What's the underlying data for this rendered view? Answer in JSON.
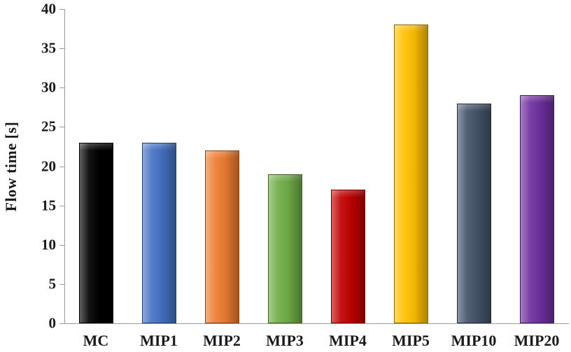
{
  "chart_data": {
    "type": "bar",
    "title": "",
    "xlabel": "",
    "ylabel": "Flow time  [s]",
    "categories": [
      "MC",
      "MIP1",
      "MIP2",
      "MIP3",
      "MIP4",
      "MIP5",
      "MIP10",
      "MIP20"
    ],
    "values": [
      23,
      23,
      22,
      19,
      17,
      38,
      28,
      29
    ],
    "ylim": [
      0,
      40
    ],
    "ytick_step": 5,
    "ytick_labels": [
      "0",
      "5",
      "10",
      "15",
      "20",
      "25",
      "30",
      "35",
      "40"
    ],
    "grid": false,
    "legend": "none",
    "bar_colors": [
      "#000000",
      "#4472C4",
      "#ED7D31",
      "#70AD47",
      "#C00000",
      "#FFC000",
      "#44546A",
      "#7030A0"
    ],
    "axis_color": "#9b9b9b"
  }
}
